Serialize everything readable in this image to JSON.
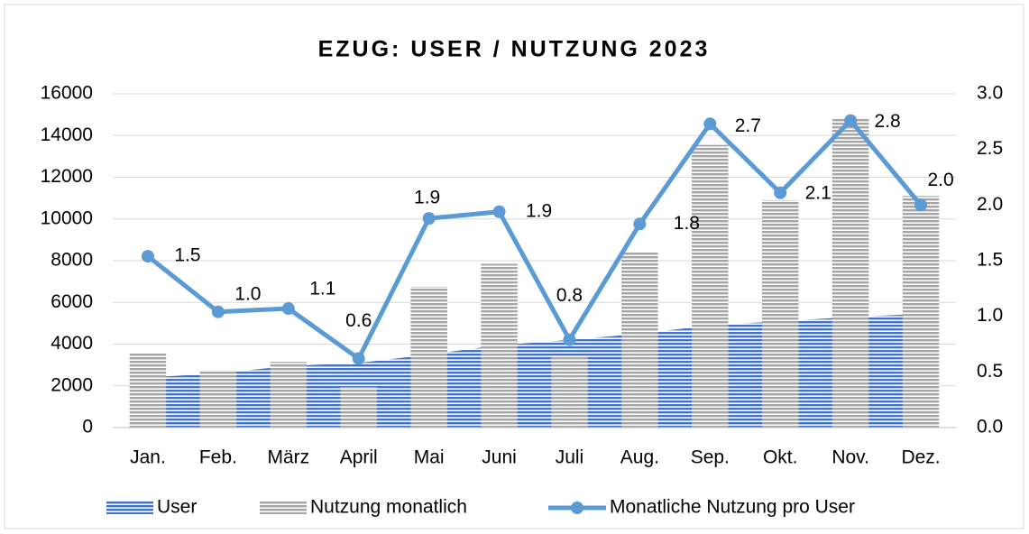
{
  "chart_data": {
    "type": "bar-area-line",
    "title": "EZUG: USER / NUTZUNG 2023",
    "categories": [
      "Jan.",
      "Feb.",
      "März",
      "April",
      "Mai",
      "Juni",
      "Juli",
      "Aug.",
      "Sep.",
      "Okt.",
      "Nov.",
      "Dez."
    ],
    "series": [
      {
        "name": "User",
        "type": "area",
        "color": "#4472c4",
        "values": [
          2400,
          2600,
          2950,
          3100,
          3500,
          3950,
          4200,
          4500,
          4900,
          5100,
          5300,
          5450
        ]
      },
      {
        "name": "Nutzung monatlich",
        "type": "bar",
        "color": "#a5a5a5",
        "values": [
          3550,
          2750,
          3150,
          1950,
          6750,
          7850,
          3450,
          8450,
          13550,
          10900,
          14850,
          11100
        ]
      },
      {
        "name": "Monatliche Nutzung pro User",
        "type": "line",
        "axis": "y2",
        "color": "#5b9bd5",
        "values": [
          1.54,
          1.04,
          1.07,
          0.62,
          1.88,
          1.94,
          0.79,
          1.83,
          2.73,
          2.11,
          2.76,
          2.0
        ],
        "value_labels": [
          "1.5",
          "1.0",
          "1.1",
          "0.6",
          "1.9",
          "1.9",
          "0.8",
          "1.8",
          "2.7",
          "2.1",
          "2.8",
          "2.0"
        ]
      }
    ],
    "ylim": [
      0,
      16000
    ],
    "yticks": [
      0,
      2000,
      4000,
      6000,
      8000,
      10000,
      12000,
      14000,
      16000
    ],
    "y2lim": [
      0,
      3
    ],
    "y2ticks": [
      {
        "value": 0,
        "label": "0.0"
      },
      0.5,
      {
        "value": 1,
        "label": "1.0"
      },
      1.5,
      {
        "value": 2,
        "label": "2.0"
      },
      2.5,
      {
        "value": 3,
        "label": "3.0"
      }
    ],
    "grid": true,
    "legend": "bottom"
  }
}
